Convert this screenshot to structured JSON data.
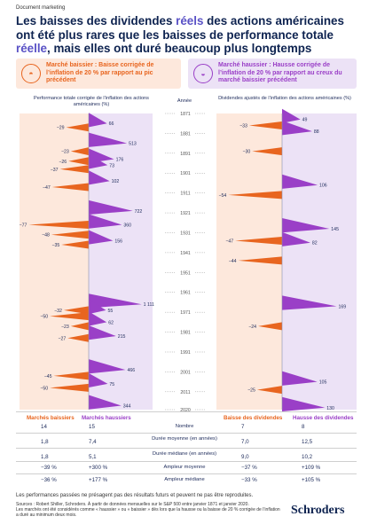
{
  "doc_tag": "Document marketing",
  "title": {
    "part1": "Les baisses des dividendes ",
    "highlight1": "réels",
    "part2": " des actions américaines ont été plus rares que les baisses de performance totale ",
    "highlight2": "réelle",
    "part3": ", mais elles ont duré beaucoup plus longtemps"
  },
  "legend": {
    "bear_title": "Marché baissier : Baisse corrigée de l’inflation de 20 % par rapport au pic précédent",
    "bull_title": "Marché haussier : Hausse corrigée de l’inflation de 20 % par rapport au creux du marché baissier précédent",
    "bear_icon": "bear-icon",
    "bull_icon": "bull-icon"
  },
  "column_headers": {
    "left": "Performance totale corrigée de l’inflation des actions américaines (%)",
    "middle": "Année",
    "right": "Dividendes ajustés de l’inflation des actions américaines (%)"
  },
  "colors": {
    "bear": "#e8651f",
    "bull": "#9a3fc7",
    "bear_bg": "#fde8dc",
    "bull_bg": "#ece2f6",
    "navy": "#0e2350"
  },
  "chart_data": [
    {
      "type": "area",
      "title": "Performance totale corrigée de l’inflation des actions américaines (%)",
      "y_axis": "Année",
      "y_range": [
        1871,
        2020
      ],
      "y_ticks": [
        1871,
        1881,
        1891,
        1901,
        1911,
        1921,
        1931,
        1941,
        1951,
        1961,
        1971,
        1981,
        1991,
        2001,
        2011,
        2020
      ],
      "bear_markets": [
        {
          "value": -29,
          "year": 1878
        },
        {
          "value": -23,
          "year": 1890
        },
        {
          "value": -26,
          "year": 1895
        },
        {
          "value": -37,
          "year": 1899
        },
        {
          "value": -47,
          "year": 1908
        },
        {
          "value": -77,
          "year": 1927
        },
        {
          "value": -48,
          "year": 1932
        },
        {
          "value": -35,
          "year": 1937
        },
        {
          "value": -32,
          "year": 1970
        },
        {
          "value": -50,
          "year": 1973
        },
        {
          "value": -23,
          "year": 1978
        },
        {
          "value": -27,
          "year": 1984
        },
        {
          "value": -45,
          "year": 2003
        },
        {
          "value": -50,
          "year": 2009
        }
      ],
      "bull_markets": [
        {
          "value": 66,
          "year": 1876
        },
        {
          "value": 513,
          "year": 1886
        },
        {
          "value": 176,
          "year": 1894
        },
        {
          "value": 73,
          "year": 1897
        },
        {
          "value": 102,
          "year": 1905
        },
        {
          "value": 722,
          "year": 1920
        },
        {
          "value": 360,
          "year": 1927
        },
        {
          "value": 156,
          "year": 1935
        },
        {
          "value": 1111,
          "year": 1967
        },
        {
          "value": 55,
          "year": 1970
        },
        {
          "value": 62,
          "year": 1976
        },
        {
          "value": 215,
          "year": 1983
        },
        {
          "value": 466,
          "year": 2000
        },
        {
          "value": 75,
          "year": 2007
        },
        {
          "value": 344,
          "year": 2018
        }
      ]
    },
    {
      "type": "area",
      "title": "Dividendes ajustés de l’inflation des actions américaines (%)",
      "y_axis": "Année",
      "y_range": [
        1871,
        2020
      ],
      "bear_markets": [
        {
          "value": -33,
          "year": 1877
        },
        {
          "value": -30,
          "year": 1890
        },
        {
          "value": -54,
          "year": 1912
        },
        {
          "value": -47,
          "year": 1935
        },
        {
          "value": -44,
          "year": 1945
        },
        {
          "value": -24,
          "year": 1978
        },
        {
          "value": -25,
          "year": 2010
        }
      ],
      "bull_markets": [
        {
          "value": 49,
          "year": 1874
        },
        {
          "value": 88,
          "year": 1880
        },
        {
          "value": 106,
          "year": 1907
        },
        {
          "value": 145,
          "year": 1929
        },
        {
          "value": 82,
          "year": 1936
        },
        {
          "value": 169,
          "year": 1968
        },
        {
          "value": 105,
          "year": 2006
        },
        {
          "value": 130,
          "year": 2019
        }
      ]
    }
  ],
  "summary": {
    "left_headers": [
      "Marchés baissiers",
      "Marchés haussiers"
    ],
    "right_headers": [
      "Baisse des dividendes",
      "Hausse des dividendes"
    ],
    "rows": [
      {
        "label": "Nombre",
        "lb": "14",
        "lh": "15",
        "rb": "7",
        "rh": "8"
      },
      {
        "label": "Durée moyenne (en années)",
        "lb": "1,8",
        "lh": "7,4",
        "rb": "7,0",
        "rh": "12,5"
      },
      {
        "label": "Durée médiane (en années)",
        "lb": "1,8",
        "lh": "5,1",
        "rb": "9,0",
        "rh": "10,2"
      },
      {
        "label": "Ampleur moyenne",
        "lb": "−39 %",
        "lh": "+300 %",
        "rb": "−37 %",
        "rh": "+109 %"
      },
      {
        "label": "Ampleur médiane",
        "lb": "−36 %",
        "lh": "+177 %",
        "rb": "−33 %",
        "rh": "+105 %"
      }
    ]
  },
  "footer": {
    "disclaimer": "Les performances passées ne présagent pas des résultats futurs et peuvent ne pas être reproduites.",
    "sources": "Sources : Robert Shiller, Schroders. À partir de données mensuelles sur le S&P 500 entre janvier 1871 et janvier 2020.",
    "note": "Les marchés ont été considérés comme « haussier » ou « baissier » dès lors que la hausse ou la baisse de 20 % corrigée de l’inflation a duré au minimum deux mois."
  },
  "brand": "Schroders"
}
